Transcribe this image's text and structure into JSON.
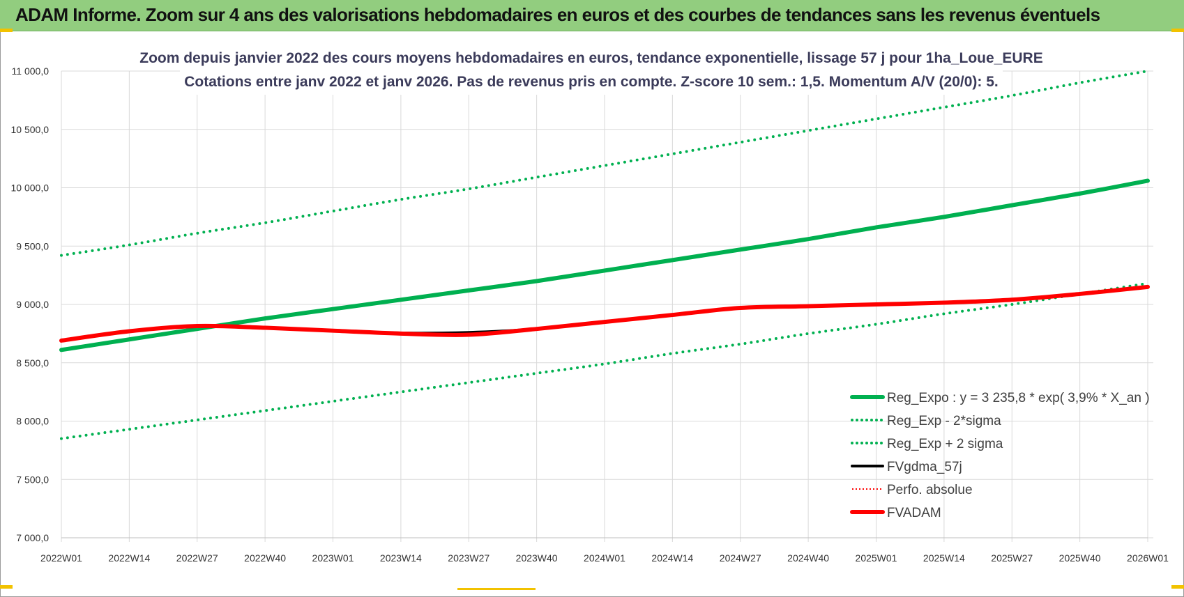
{
  "banner": {
    "title": "ADAM Informe. Zoom sur 4 ans des valorisations hebdomadaires en euros et des courbes de tendances sans les revenus éventuels"
  },
  "colors": {
    "banner_bg": "#92cd7f",
    "green": "#00b050",
    "black": "#000000",
    "red": "#ff0000"
  },
  "chart_data": {
    "type": "line",
    "title_line1": "Zoom depuis janvier 2022 des cours moyens hebdomadaires en euros, tendance exponentielle, lissage 57 j pour 1ha_Loue_EURE",
    "title_line2": "Cotations entre janv 2022 et janv 2026. Pas de revenus pris en compte. Z-score 10 sem.: 1,5. Momentum A/V (20/0): 5.",
    "ylim": [
      7000,
      11000
    ],
    "y_ticks": [
      "7 000,0",
      "7 500,0",
      "8 000,0",
      "8 500,0",
      "9 000,0",
      "9 500,0",
      "10 000,0",
      "10 500,0",
      "11 000,0"
    ],
    "x_ticks": [
      "2022W01",
      "2022W14",
      "2022W27",
      "2022W40",
      "2023W01",
      "2023W14",
      "2023W27",
      "2023W40",
      "2024W01",
      "2024W14",
      "2024W27",
      "2024W40",
      "2025W01",
      "2025W14",
      "2025W27",
      "2025W40",
      "2026W01"
    ],
    "series": [
      {
        "name": "Reg_Expo : y = 3 235,8 * exp( 3,9% *  X_an )",
        "style": "solid-thick",
        "color": "#00b050",
        "values": [
          8610,
          8700,
          8790,
          8880,
          8960,
          9040,
          9120,
          9200,
          9290,
          9380,
          9470,
          9560,
          9660,
          9750,
          9850,
          9950,
          10060
        ]
      },
      {
        "name": "Reg_Exp - 2*sigma",
        "style": "dotted",
        "color": "#00b050",
        "values": [
          7850,
          7930,
          8010,
          8090,
          8170,
          8250,
          8330,
          8410,
          8490,
          8580,
          8660,
          8750,
          8830,
          8920,
          9000,
          9090,
          9180
        ]
      },
      {
        "name": "Reg_Exp + 2 sigma",
        "style": "dotted",
        "color": "#00b050",
        "values": [
          9420,
          9510,
          9610,
          9700,
          9800,
          9900,
          9990,
          10090,
          10190,
          10290,
          10390,
          10490,
          10590,
          10690,
          10790,
          10900,
          11000
        ]
      },
      {
        "name": "FVgdma_57j",
        "style": "solid",
        "color": "#000000",
        "values": [
          8690,
          8770,
          8810,
          8800,
          8775,
          8755,
          8760,
          8790,
          8850,
          8910,
          8970,
          8985,
          9000,
          9015,
          9040,
          9090,
          9150
        ]
      },
      {
        "name": "Perfo. absolue",
        "style": "dotted-thin",
        "color": "#ff0000",
        "values": [
          8690,
          8770,
          8815,
          8800,
          8775,
          8750,
          8740,
          8790,
          8850,
          8910,
          8970,
          8985,
          9000,
          9015,
          9040,
          9090,
          9150
        ]
      },
      {
        "name": "FVADAM",
        "style": "solid-thick",
        "color": "#ff0000",
        "values": [
          8690,
          8770,
          8815,
          8800,
          8775,
          8750,
          8740,
          8790,
          8850,
          8910,
          8970,
          8985,
          9000,
          9015,
          9040,
          9090,
          9150
        ]
      }
    ]
  }
}
